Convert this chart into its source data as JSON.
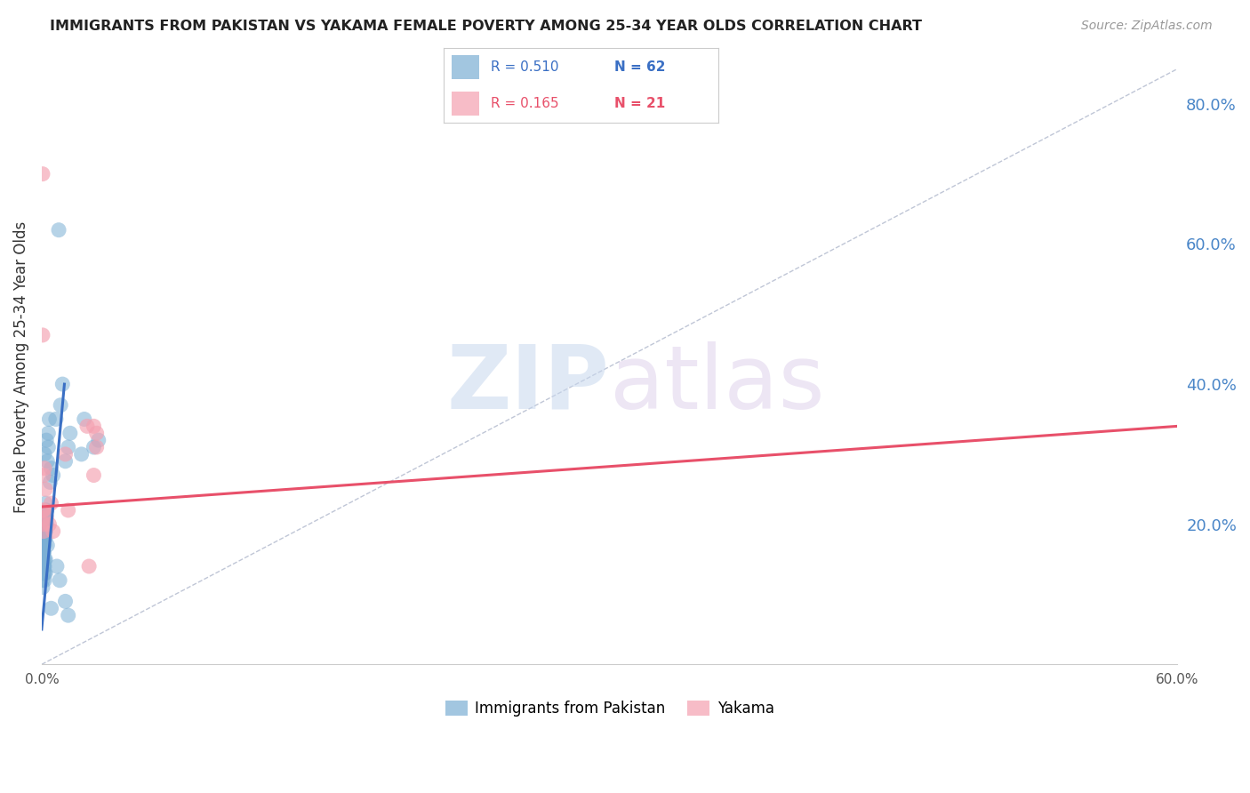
{
  "title": "IMMIGRANTS FROM PAKISTAN VS YAKAMA FEMALE POVERTY AMONG 25-34 YEAR OLDS CORRELATION CHART",
  "source": "Source: ZipAtlas.com",
  "ylabel": "Female Poverty Among 25-34 Year Olds",
  "xmin": 0.0,
  "xmax": 0.6,
  "ymin": 0.0,
  "ymax": 0.85,
  "right_yticks": [
    0.2,
    0.4,
    0.6,
    0.8
  ],
  "right_ytick_labels": [
    "20.0%",
    "40.0%",
    "60.0%",
    "80.0%"
  ],
  "xtick_positions": [
    0.0,
    0.12,
    0.24,
    0.36,
    0.48,
    0.6
  ],
  "xtick_labels": [
    "0.0%",
    "",
    "",
    "",
    "",
    "60.0%"
  ],
  "grid_color": "#d0d0d0",
  "background_color": "#ffffff",
  "blue_color": "#7bafd4",
  "pink_color": "#f4a0b0",
  "blue_line_color": "#3a6fc4",
  "pink_line_color": "#e8506a",
  "legend_R_blue": "0.510",
  "legend_N_blue": "62",
  "legend_R_pink": "0.165",
  "legend_N_pink": "21",
  "legend_label_blue": "Immigrants from Pakistan",
  "legend_label_pink": "Yakama",
  "watermark_zip": "ZIP",
  "watermark_atlas": "atlas",
  "blue_x": [
    0.0005,
    0.001,
    0.0015,
    0.001,
    0.0005,
    0.0015,
    0.002,
    0.001,
    0.0005,
    0.001,
    0.0015,
    0.0005,
    0.001,
    0.0015,
    0.0025,
    0.002,
    0.0015,
    0.001,
    0.0005,
    0.001,
    0.0015,
    0.002,
    0.001,
    0.0005,
    0.0015,
    0.0025,
    0.002,
    0.0015,
    0.003,
    0.0025,
    0.002,
    0.0015,
    0.001,
    0.0005,
    0.0015,
    0.002,
    0.001,
    0.0015,
    0.0025,
    0.0035,
    0.004,
    0.0035,
    0.003,
    0.005,
    0.006,
    0.0045,
    0.009,
    0.011,
    0.01,
    0.0075,
    0.008,
    0.005,
    0.015,
    0.014,
    0.0125,
    0.0095,
    0.03,
    0.0275,
    0.0225,
    0.021,
    0.014,
    0.0125
  ],
  "blue_y": [
    0.15,
    0.16,
    0.17,
    0.18,
    0.19,
    0.2,
    0.15,
    0.16,
    0.17,
    0.14,
    0.13,
    0.15,
    0.16,
    0.21,
    0.22,
    0.19,
    0.2,
    0.15,
    0.12,
    0.13,
    0.14,
    0.18,
    0.17,
    0.16,
    0.15,
    0.2,
    0.19,
    0.18,
    0.17,
    0.22,
    0.23,
    0.21,
    0.2,
    0.11,
    0.12,
    0.13,
    0.14,
    0.3,
    0.32,
    0.33,
    0.35,
    0.31,
    0.29,
    0.28,
    0.27,
    0.26,
    0.62,
    0.4,
    0.37,
    0.35,
    0.14,
    0.08,
    0.33,
    0.31,
    0.29,
    0.12,
    0.32,
    0.31,
    0.35,
    0.3,
    0.07,
    0.09
  ],
  "pink_x": [
    0.0005,
    0.001,
    0.0015,
    0.0005,
    0.001,
    0.0015,
    0.002,
    0.001,
    0.0005,
    0.0025,
    0.004,
    0.005,
    0.006,
    0.0125,
    0.014,
    0.024,
    0.0275,
    0.029,
    0.025,
    0.0275,
    0.029
  ],
  "pink_y": [
    0.22,
    0.27,
    0.2,
    0.7,
    0.22,
    0.28,
    0.25,
    0.19,
    0.47,
    0.21,
    0.2,
    0.23,
    0.19,
    0.3,
    0.22,
    0.34,
    0.34,
    0.31,
    0.14,
    0.27,
    0.33
  ],
  "blue_trend_x": [
    0.0,
    0.012
  ],
  "blue_trend_y": [
    0.05,
    0.4
  ],
  "pink_trend_x": [
    0.0,
    0.6
  ],
  "pink_trend_y": [
    0.225,
    0.34
  ],
  "dashed_line_x": [
    0.0,
    0.6
  ],
  "dashed_line_y": [
    0.0,
    0.85
  ]
}
